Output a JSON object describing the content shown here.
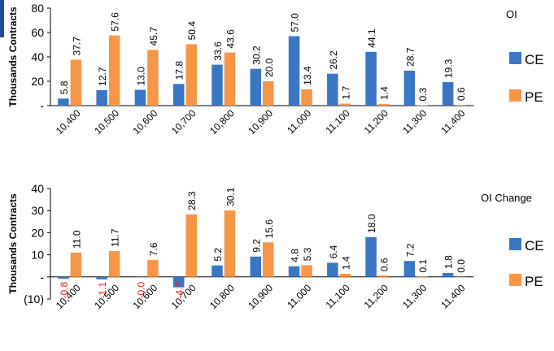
{
  "colors": {
    "ce": "#3a76c4",
    "pe": "#f79646",
    "negative_label": "#e8251c",
    "axis": "#000000"
  },
  "chart_data": [
    {
      "type": "bar",
      "title": "OI",
      "ylabel": "Thousands Contracts",
      "xlabel": "",
      "ylim": [
        0,
        80
      ],
      "yticks": [
        0,
        20,
        40,
        60,
        80
      ],
      "ytick_labels": [
        "-",
        "20",
        "40",
        "60",
        "80"
      ],
      "categories": [
        "10,400",
        "10,500",
        "10,600",
        "10,700",
        "10,800",
        "10,900",
        "11,000",
        "11,100",
        "11,200",
        "11,300",
        "11,400"
      ],
      "series": [
        {
          "name": "CE",
          "values": [
            5.8,
            12.7,
            13.0,
            17.8,
            33.6,
            30.2,
            57.0,
            26.2,
            44.1,
            28.7,
            19.3
          ],
          "labels": [
            "5.8",
            "12.7",
            "13.0",
            "17.8",
            "33.6",
            "30.2",
            "57.0",
            "26.2",
            "44.1",
            "28.7",
            "19.3"
          ]
        },
        {
          "name": "PE",
          "values": [
            37.7,
            57.6,
            45.7,
            50.4,
            43.6,
            20.0,
            13.4,
            1.7,
            1.4,
            0.3,
            0.6
          ],
          "labels": [
            "37.7",
            "57.6",
            "45.7",
            "50.4",
            "43.6",
            "20.0",
            "13.4",
            "1.7",
            "1.4",
            "0.3",
            "0.6"
          ]
        }
      ],
      "legend": "right"
    },
    {
      "type": "bar",
      "title": "OI Change",
      "ylabel": "Thousands Contracts",
      "xlabel": "",
      "ylim": [
        -10,
        40
      ],
      "yticks": [
        -10,
        0,
        10,
        20,
        30,
        40
      ],
      "ytick_labels": [
        "(10)",
        "-",
        "10",
        "20",
        "30",
        "40"
      ],
      "categories": [
        "10,400",
        "10,500",
        "10,600",
        "10,700",
        "10,800",
        "10,900",
        "11,000",
        "11,100",
        "11,200",
        "11,300",
        "11,400"
      ],
      "series": [
        {
          "name": "CE",
          "values": [
            -0.8,
            -1.1,
            -0.0,
            -4.7,
            5.2,
            9.2,
            4.8,
            6.4,
            18.0,
            7.2,
            1.8
          ],
          "labels": [
            "-0.8",
            "-1.1",
            "-0.0",
            "-4.7",
            "5.2",
            "9.2",
            "4.8",
            "6.4",
            "18.0",
            "7.2",
            "1.8"
          ]
        },
        {
          "name": "PE",
          "values": [
            11.0,
            11.7,
            7.6,
            28.3,
            30.1,
            15.6,
            5.3,
            1.4,
            0.6,
            0.1,
            0.0
          ],
          "labels": [
            "11.0",
            "11.7",
            "7.6",
            "28.3",
            "30.1",
            "15.6",
            "5.3",
            "1.4",
            "0.6",
            "0.1",
            "0.0"
          ]
        }
      ],
      "legend": "right"
    }
  ]
}
